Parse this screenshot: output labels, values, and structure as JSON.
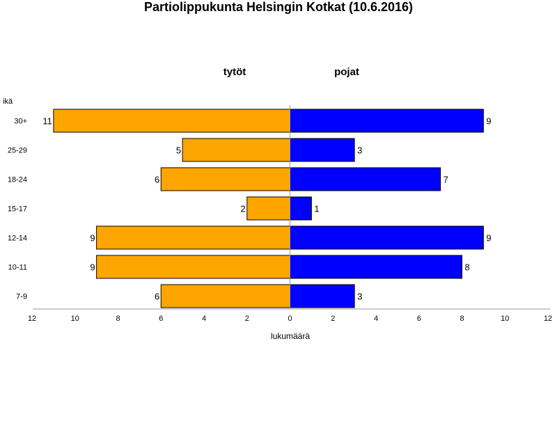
{
  "chart_data": {
    "type": "bar",
    "orientation": "horizontal",
    "layout": "population-pyramid",
    "title": "Partiolippukunta Helsingin Kotkat (10.6.2016)",
    "ylabel": "ikä",
    "xlabel": "lukumäärä",
    "categories": [
      "30+",
      "25-29",
      "18-24",
      "15-17",
      "12-14",
      "10-11",
      "7-9"
    ],
    "series": [
      {
        "name": "tytöt",
        "side": "left",
        "color": "#FFA500",
        "values": [
          11,
          5,
          6,
          2,
          9,
          9,
          6
        ]
      },
      {
        "name": "pojat",
        "side": "right",
        "color": "#0000FF",
        "values": [
          9,
          3,
          7,
          1,
          9,
          8,
          3
        ]
      }
    ],
    "xlim": [
      -12,
      12
    ],
    "xticks": [
      {
        "value": -12,
        "label": "12"
      },
      {
        "value": -10,
        "label": "10"
      },
      {
        "value": -8,
        "label": "8"
      },
      {
        "value": -6,
        "label": "6"
      },
      {
        "value": -4,
        "label": "4"
      },
      {
        "value": -2,
        "label": "2"
      },
      {
        "value": 0,
        "label": "0"
      },
      {
        "value": 2,
        "label": "2"
      },
      {
        "value": 4,
        "label": "4"
      },
      {
        "value": 6,
        "label": "6"
      },
      {
        "value": 8,
        "label": "8"
      },
      {
        "value": 10,
        "label": "10"
      },
      {
        "value": 12,
        "label": "12"
      }
    ],
    "grid": false,
    "legend": "none"
  }
}
